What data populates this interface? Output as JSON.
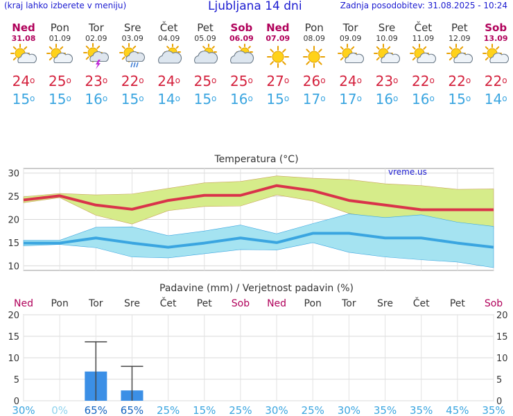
{
  "header": {
    "menu_hint": "(kraj lahko izberete v meniju)",
    "title": "Ljubljana 14 dni",
    "updated": "Zadnja posodobitev: 31.08.2025 - 10:24"
  },
  "days": [
    {
      "name": "Ned",
      "date": "31.08",
      "weekend": true,
      "icon": "sun-cloud-icon",
      "tmax": "24",
      "tmin": "15"
    },
    {
      "name": "Pon",
      "date": "01.09",
      "weekend": false,
      "icon": "sun-cloud-icon",
      "tmax": "25",
      "tmin": "15"
    },
    {
      "name": "Tor",
      "date": "02.09",
      "weekend": false,
      "icon": "thunderstorm-icon",
      "tmax": "23",
      "tmin": "16"
    },
    {
      "name": "Sre",
      "date": "03.09",
      "weekend": false,
      "icon": "sun-rain-icon",
      "tmax": "22",
      "tmin": "15"
    },
    {
      "name": "Čet",
      "date": "04.09",
      "weekend": false,
      "icon": "cloud-sun-icon",
      "tmax": "24",
      "tmin": "14"
    },
    {
      "name": "Pet",
      "date": "05.09",
      "weekend": false,
      "icon": "cloud-sun-icon",
      "tmax": "25",
      "tmin": "15"
    },
    {
      "name": "Sob",
      "date": "06.09",
      "weekend": true,
      "icon": "cloud-sun-icon",
      "tmax": "25",
      "tmin": "16"
    },
    {
      "name": "Ned",
      "date": "07.09",
      "weekend": true,
      "icon": "sun-icon",
      "tmax": "27",
      "tmin": "15"
    },
    {
      "name": "Pon",
      "date": "08.09",
      "weekend": false,
      "icon": "sun-icon",
      "tmax": "26",
      "tmin": "17"
    },
    {
      "name": "Tor",
      "date": "09.09",
      "weekend": false,
      "icon": "sun-cloud-icon",
      "tmax": "24",
      "tmin": "17"
    },
    {
      "name": "Sre",
      "date": "10.09",
      "weekend": false,
      "icon": "sun-cloud-icon",
      "tmax": "23",
      "tmin": "16"
    },
    {
      "name": "Čet",
      "date": "11.09",
      "weekend": false,
      "icon": "sun-cloud-icon",
      "tmax": "22",
      "tmin": "16"
    },
    {
      "name": "Pet",
      "date": "12.09",
      "weekend": false,
      "icon": "sun-cloud-icon",
      "tmax": "22",
      "tmin": "15"
    },
    {
      "name": "Sob",
      "date": "13.09",
      "weekend": true,
      "icon": "sun-cloud-icon",
      "tmax": "22",
      "tmin": "14"
    }
  ],
  "degree_symbol": "o",
  "chart_data": [
    {
      "type": "line",
      "title": "Temperatura (°C)",
      "watermark": "vreme.us",
      "ylim": [
        9,
        31
      ],
      "yticks": [
        10,
        15,
        20,
        25,
        30
      ],
      "grid": true,
      "x": [
        "31.08",
        "01.09",
        "02.09",
        "03.09",
        "04.09",
        "05.09",
        "06.09",
        "07.09",
        "08.09",
        "09.09",
        "10.09",
        "11.09",
        "12.09",
        "13.09"
      ],
      "series": [
        {
          "values": [
            24.2,
            25.1,
            23.1,
            22.2,
            24.1,
            25.2,
            25.2,
            27.3,
            26.2,
            24.1,
            23.1,
            22.1,
            22.1,
            22.1
          ],
          "color": "#d9334a"
        },
        {
          "values": [
            14.9,
            14.9,
            16.0,
            14.9,
            14.0,
            14.9,
            16.0,
            15.0,
            17.0,
            17.0,
            16.0,
            16.0,
            14.9,
            14.0
          ],
          "color": "#3aa5e0"
        }
      ],
      "max_band": {
        "upper": [
          24.9,
          25.6,
          25.3,
          25.5,
          26.7,
          27.9,
          28.2,
          29.4,
          28.9,
          28.6,
          27.7,
          27.3,
          26.5,
          26.6
        ],
        "lower": [
          23.6,
          24.7,
          20.9,
          19.0,
          21.9,
          22.8,
          22.9,
          25.3,
          24.0,
          21.3,
          20.0,
          18.8,
          18.6,
          18.0
        ],
        "color": "#d6ec8a"
      },
      "min_band": {
        "upper": [
          15.5,
          15.5,
          18.3,
          18.4,
          16.5,
          17.5,
          18.8,
          16.9,
          19.1,
          21.2,
          20.4,
          21.0,
          19.4,
          18.5
        ],
        "lower": [
          14.3,
          14.6,
          13.9,
          11.9,
          11.7,
          12.6,
          13.5,
          13.4,
          15.0,
          12.9,
          11.9,
          11.3,
          10.8,
          9.6
        ],
        "color": "#a5e3f1"
      }
    },
    {
      "type": "bar",
      "title": "Padavine (mm) / Verjetnost padavin (%)",
      "ylim": [
        0,
        20
      ],
      "yticks": [
        0,
        5,
        10,
        15,
        20
      ],
      "grid": true,
      "categories": [
        "Ned",
        "Pon",
        "Tor",
        "Sre",
        "Čet",
        "Pet",
        "Sob",
        "Ned",
        "Pon",
        "Tor",
        "Sre",
        "Čet",
        "Pet",
        "Sob"
      ],
      "values": [
        0,
        0,
        6.8,
        2.4,
        0,
        0,
        0,
        0,
        0,
        0,
        0,
        0,
        0,
        0
      ],
      "error_top": [
        null,
        null,
        13.7,
        8.0,
        null,
        null,
        null,
        null,
        null,
        null,
        null,
        null,
        null,
        null
      ],
      "probability": [
        "30%",
        "0%",
        "65%",
        "65%",
        "25%",
        "15%",
        "25%",
        "30%",
        "25%",
        "30%",
        "35%",
        "35%",
        "45%",
        "35%"
      ],
      "bar_color": "#3b8fe6"
    }
  ]
}
